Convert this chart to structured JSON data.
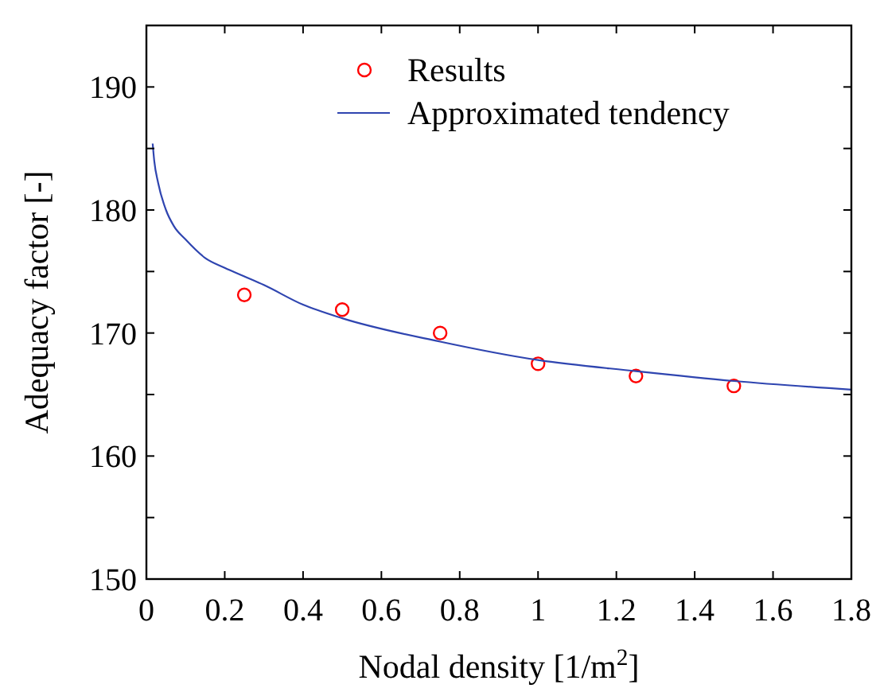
{
  "chart_data": {
    "type": "scatter",
    "xlabel": "Nodal density [1/m$^{2}$]",
    "ylabel": "Adequacy factor [-]",
    "xlim": [
      0,
      1.8
    ],
    "xticks": [
      0,
      0.2,
      0.4,
      0.6,
      0.8,
      1,
      1.2,
      1.4,
      1.6,
      1.8
    ],
    "ylim": [
      150,
      195
    ],
    "yticks": [
      150,
      {
        "value": 155,
        "label": null
      },
      160,
      {
        "value": 165,
        "label": null
      },
      170,
      {
        "value": 175,
        "label": null
      },
      180,
      {
        "value": 185,
        "label": null
      },
      190
    ],
    "grid": false,
    "legend": "top right",
    "series": [
      {
        "name": "Results",
        "marker": "circle",
        "color": "#ff0000",
        "x": [
          0.25,
          0.5,
          0.75,
          1,
          1.25,
          1.5
        ],
        "values": [
          173.1,
          171.9,
          170.0,
          167.5,
          166.5,
          165.7
        ]
      },
      {
        "name": "Approximated tendency",
        "type": "line",
        "marker": "none",
        "line_style": "solid",
        "color": "#2f45b0",
        "x": [
          0.016,
          0.02,
          0.03,
          0.05,
          0.07,
          0.1,
          0.15,
          0.2,
          0.25,
          0.3,
          0.4,
          0.5,
          0.75,
          1,
          1.25,
          1.5,
          1.8
        ],
        "values": [
          185.4,
          184.0,
          182.2,
          180.0,
          178.7,
          177.6,
          176.1,
          175.3,
          174.6,
          173.9,
          172.3,
          171.2,
          169.3,
          167.8,
          166.9,
          166.1,
          165.4
        ]
      }
    ]
  }
}
